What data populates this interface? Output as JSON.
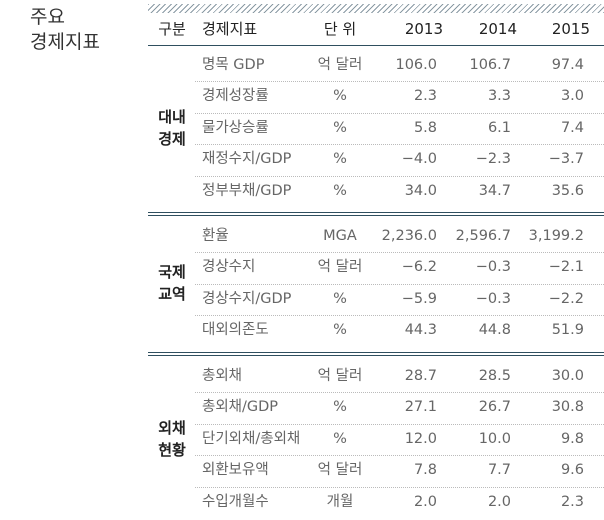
{
  "title": [
    "주요",
    "경제지표"
  ],
  "table": {
    "header": [
      "구분",
      "경제지표",
      "단 위",
      "2013",
      "2014",
      "2015"
    ],
    "groups": [
      {
        "label": [
          "대내",
          "경제"
        ],
        "rows": [
          [
            "명목 GDP",
            "억 달러",
            "106.0",
            "106.7",
            "97.4"
          ],
          [
            "경제성장률",
            "%",
            "2.3",
            "3.3",
            "3.0"
          ],
          [
            "물가상승률",
            "%",
            "5.8",
            "6.1",
            "7.4"
          ],
          [
            "재정수지/GDP",
            "%",
            "−4.0",
            "−2.3",
            "−3.7"
          ],
          [
            "정부부채/GDP",
            "%",
            "34.0",
            "34.7",
            "35.6"
          ]
        ]
      },
      {
        "label": [
          "국제",
          "교역"
        ],
        "rows": [
          [
            "환율",
            "MGA",
            "2,236.0",
            "2,596.7",
            "3,199.2"
          ],
          [
            "경상수지",
            "억 달러",
            "−6.2",
            "−0.3",
            "−2.1"
          ],
          [
            "경상수지/GDP",
            "%",
            "−5.9",
            "−0.3",
            "−2.2"
          ],
          [
            "대외의존도",
            "%",
            "44.3",
            "44.8",
            "51.9"
          ]
        ]
      },
      {
        "label": [
          "외채",
          "현황"
        ],
        "rows": [
          [
            "총외채",
            "억 달러",
            "28.7",
            "28.5",
            "30.0"
          ],
          [
            "총외채/GDP",
            "%",
            "27.1",
            "26.7",
            "30.8"
          ],
          [
            "단기외채/총외채",
            "%",
            "12.0",
            "10.0",
            "9.8"
          ],
          [
            "외환보유액",
            "억 달러",
            "7.8",
            "7.7",
            "9.6"
          ],
          [
            "수입개월수",
            "개월",
            "2.0",
            "2.0",
            "2.3"
          ]
        ]
      }
    ]
  }
}
